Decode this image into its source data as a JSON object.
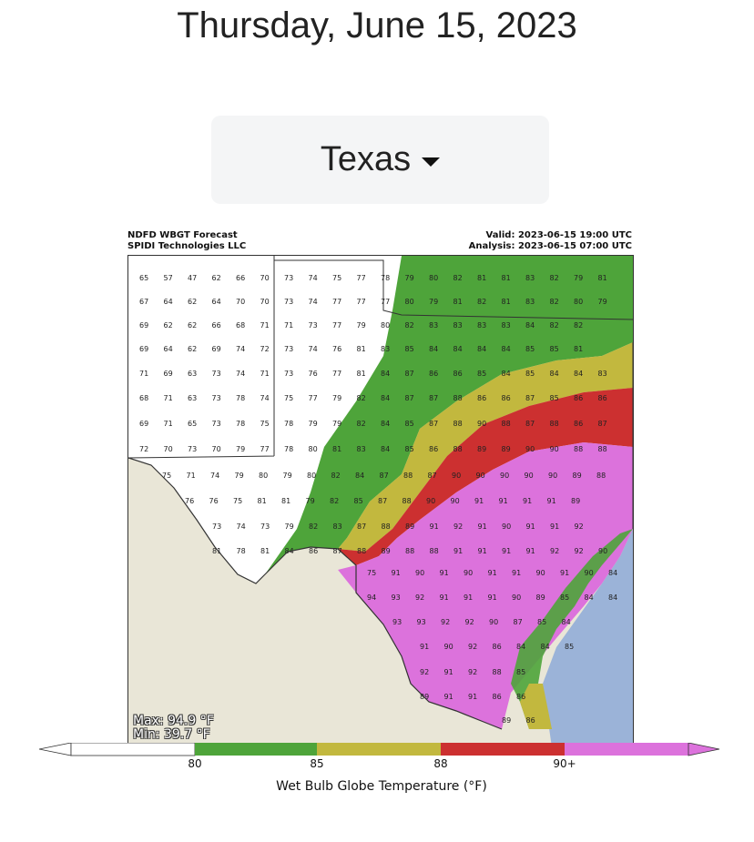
{
  "page": {
    "date": "Thursday, June 15, 2023"
  },
  "selector": {
    "value": "Texas",
    "icon": "caret-down-icon"
  },
  "map": {
    "title_left_1": "NDFD WBGT Forecast",
    "title_left_2": "SPIDI Technologies LLC",
    "valid": "Valid: 2023-06-15 19:00 UTC",
    "analysis": "Analysis: 2023-06-15 07:00 UTC",
    "max": "Max: 94.9 °F",
    "min": "Min: 39.7 °F",
    "colorbar": {
      "title": "Wet Bulb Globe Temperature (°F)",
      "ticks": [
        "80",
        "85",
        "88",
        "90+"
      ],
      "colors": [
        "#ffffff",
        "#4ea43a",
        "#c2b83e",
        "#cc3030",
        "#dc72dc"
      ]
    },
    "colors": {
      "land": "#e9e6d7",
      "water": "#9bb3d8"
    },
    "rows": [
      [
        "65",
        "57",
        "47",
        "62",
        "66",
        "70",
        "73",
        "74",
        "75",
        "77",
        "78",
        "79",
        "80",
        "82",
        "81",
        "81",
        "83",
        "82",
        "79",
        "81"
      ],
      [
        "67",
        "64",
        "62",
        "64",
        "70",
        "70",
        "73",
        "74",
        "77",
        "77",
        "77",
        "80",
        "79",
        "81",
        "82",
        "81",
        "83",
        "82",
        "80",
        "79"
      ],
      [
        "69",
        "62",
        "62",
        "66",
        "68",
        "71",
        "71",
        "73",
        "77",
        "79",
        "80",
        "82",
        "83",
        "83",
        "83",
        "83",
        "84",
        "82",
        "82"
      ],
      [
        "69",
        "64",
        "62",
        "69",
        "74",
        "72",
        "73",
        "74",
        "76",
        "81",
        "83",
        "85",
        "84",
        "84",
        "84",
        "84",
        "85",
        "85",
        "81"
      ],
      [
        "71",
        "69",
        "63",
        "73",
        "74",
        "71",
        "73",
        "76",
        "77",
        "81",
        "84",
        "87",
        "86",
        "86",
        "85",
        "84",
        "85",
        "84",
        "84",
        "83"
      ],
      [
        "68",
        "71",
        "63",
        "73",
        "78",
        "74",
        "75",
        "77",
        "79",
        "82",
        "84",
        "87",
        "87",
        "88",
        "86",
        "86",
        "87",
        "85",
        "86",
        "86"
      ],
      [
        "69",
        "71",
        "65",
        "73",
        "78",
        "75",
        "78",
        "79",
        "79",
        "82",
        "84",
        "85",
        "87",
        "88",
        "90",
        "88",
        "87",
        "88",
        "86",
        "87"
      ],
      [
        "72",
        "70",
        "73",
        "70",
        "79",
        "77",
        "78",
        "80",
        "81",
        "83",
        "84",
        "85",
        "86",
        "88",
        "89",
        "89",
        "90",
        "90",
        "88",
        "88"
      ],
      [
        "75",
        "71",
        "74",
        "79",
        "80",
        "79",
        "80",
        "82",
        "84",
        "87",
        "88",
        "87",
        "90",
        "90",
        "90",
        "90",
        "90",
        "89",
        "88"
      ],
      [
        "76",
        "76",
        "75",
        "81",
        "81",
        "79",
        "82",
        "85",
        "87",
        "88",
        "90",
        "90",
        "91",
        "91",
        "91",
        "91",
        "89"
      ],
      [
        "73",
        "74",
        "73",
        "79",
        "82",
        "83",
        "87",
        "88",
        "89",
        "91",
        "92",
        "91",
        "90",
        "91",
        "91",
        "92"
      ],
      [
        "81",
        "78",
        "81",
        "84",
        "86",
        "87",
        "88",
        "89",
        "88",
        "88",
        "91",
        "91",
        "91",
        "91",
        "92",
        "92",
        "90"
      ],
      [
        "75",
        "91",
        "90",
        "91",
        "90",
        "91",
        "91",
        "90",
        "91",
        "90",
        "84"
      ],
      [
        "94",
        "93",
        "92",
        "91",
        "91",
        "91",
        "90",
        "89",
        "85",
        "84",
        "84"
      ],
      [
        "93",
        "93",
        "92",
        "92",
        "90",
        "87",
        "85",
        "84"
      ],
      [
        "91",
        "90",
        "92",
        "86",
        "84",
        "84",
        "85"
      ],
      [
        "92",
        "91",
        "92",
        "88",
        "85"
      ],
      [
        "89",
        "91",
        "91",
        "86",
        "86"
      ],
      [
        "89",
        "86"
      ]
    ]
  }
}
